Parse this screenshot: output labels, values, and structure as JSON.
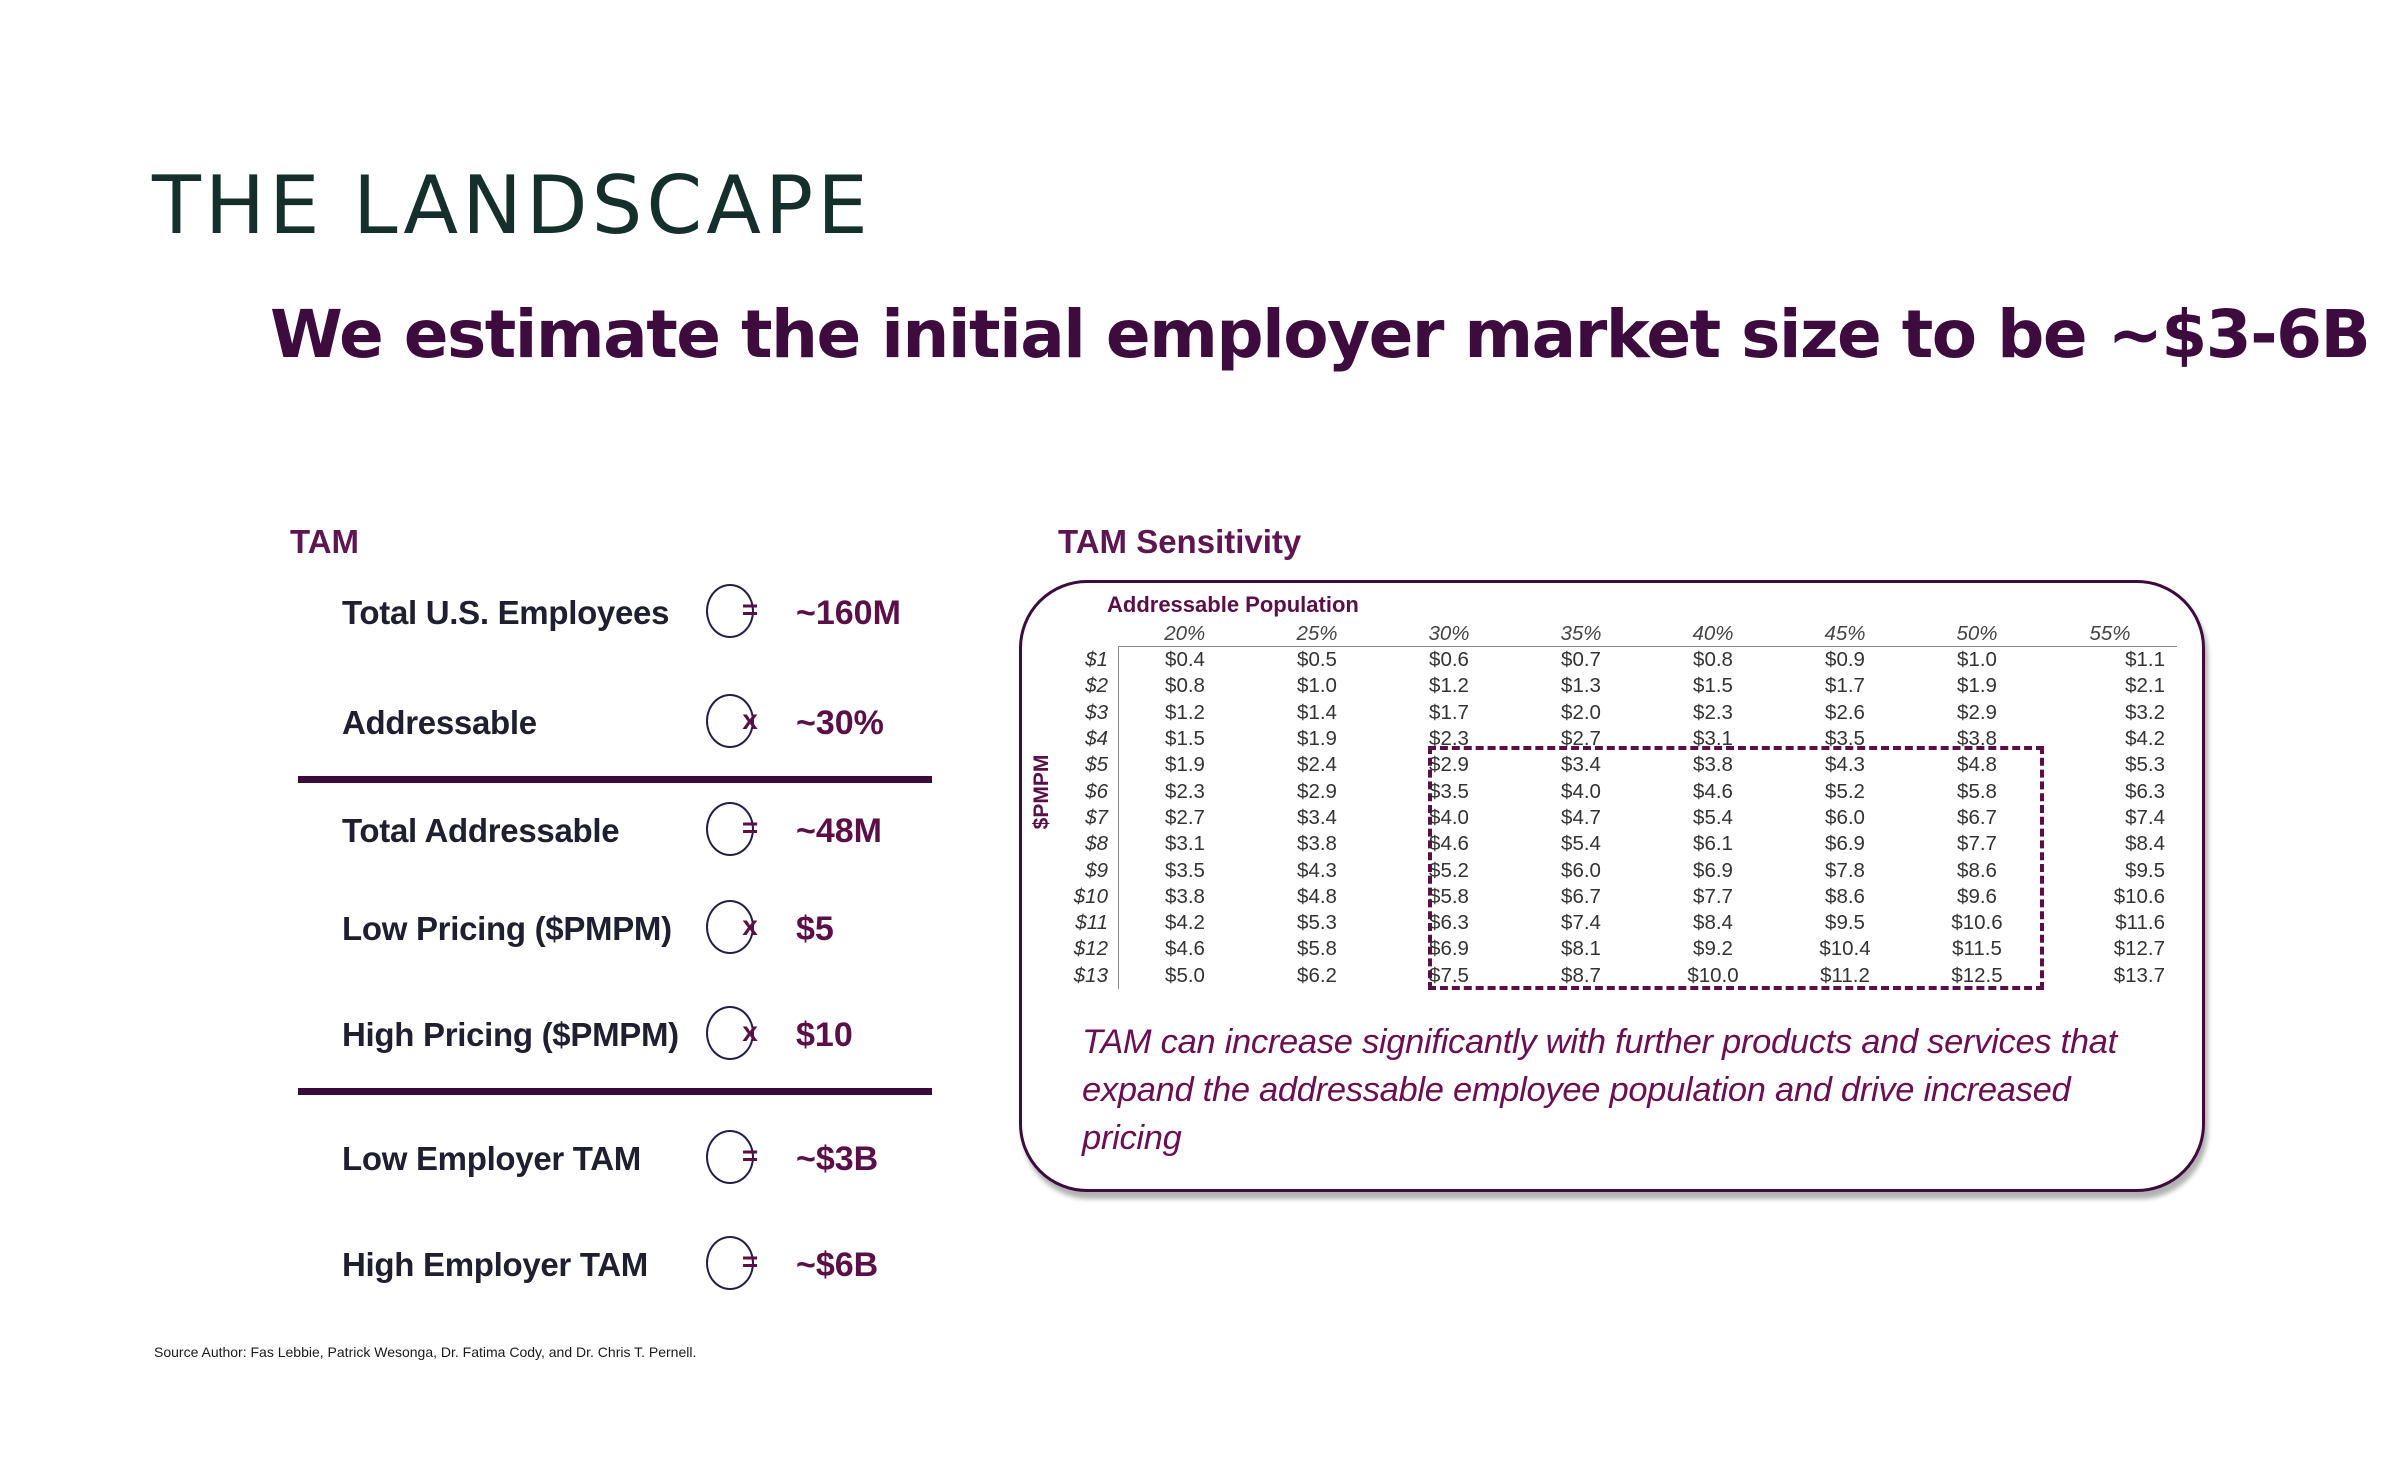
{
  "page_title": "THE LANDSCAPE",
  "headline": "We estimate the initial employer market size to be ~$3-6B",
  "tam": {
    "title": "TAM",
    "rows": [
      {
        "label": "Total U.S. Employees",
        "op": "=",
        "value": "~160M"
      },
      {
        "label": "Addressable",
        "op": "x",
        "value": "~30%"
      },
      {
        "label": "Total Addressable",
        "op": "=",
        "value": "~48M"
      },
      {
        "label": "Low Pricing ($PMPM)",
        "op": "x",
        "value": "$5"
      },
      {
        "label": "High Pricing ($PMPM)",
        "op": "x",
        "value": "$10"
      },
      {
        "label": "Low Employer TAM",
        "op": "=",
        "value": "~$3B"
      },
      {
        "label": "High Employer TAM",
        "op": "=",
        "value": "~$6B"
      }
    ]
  },
  "sensitivity": {
    "title": "TAM Sensitivity",
    "column_axis_label": "Addressable Population",
    "row_axis_label": "$PMPM",
    "columns": [
      "20%",
      "25%",
      "30%",
      "35%",
      "40%",
      "45%",
      "50%",
      "55%"
    ],
    "rows": [
      {
        "label": "$1",
        "values": [
          "$0.4",
          "$0.5",
          "$0.6",
          "$0.7",
          "$0.8",
          "$0.9",
          "$1.0",
          "$1.1"
        ]
      },
      {
        "label": "$2",
        "values": [
          "$0.8",
          "$1.0",
          "$1.2",
          "$1.3",
          "$1.5",
          "$1.7",
          "$1.9",
          "$2.1"
        ]
      },
      {
        "label": "$3",
        "values": [
          "$1.2",
          "$1.4",
          "$1.7",
          "$2.0",
          "$2.3",
          "$2.6",
          "$2.9",
          "$3.2"
        ]
      },
      {
        "label": "$4",
        "values": [
          "$1.5",
          "$1.9",
          "$2.3",
          "$2.7",
          "$3.1",
          "$3.5",
          "$3.8",
          "$4.2"
        ]
      },
      {
        "label": "$5",
        "values": [
          "$1.9",
          "$2.4",
          "$2.9",
          "$3.4",
          "$3.8",
          "$4.3",
          "$4.8",
          "$5.3"
        ]
      },
      {
        "label": "$6",
        "values": [
          "$2.3",
          "$2.9",
          "$3.5",
          "$4.0",
          "$4.6",
          "$5.2",
          "$5.8",
          "$6.3"
        ]
      },
      {
        "label": "$7",
        "values": [
          "$2.7",
          "$3.4",
          "$4.0",
          "$4.7",
          "$5.4",
          "$6.0",
          "$6.7",
          "$7.4"
        ]
      },
      {
        "label": "$8",
        "values": [
          "$3.1",
          "$3.8",
          "$4.6",
          "$5.4",
          "$6.1",
          "$6.9",
          "$7.7",
          "$8.4"
        ]
      },
      {
        "label": "$9",
        "values": [
          "$3.5",
          "$4.3",
          "$5.2",
          "$6.0",
          "$6.9",
          "$7.8",
          "$8.6",
          "$9.5"
        ]
      },
      {
        "label": "$10",
        "values": [
          "$3.8",
          "$4.8",
          "$5.8",
          "$6.7",
          "$7.7",
          "$8.6",
          "$9.6",
          "$10.6"
        ]
      },
      {
        "label": "$11",
        "values": [
          "$4.2",
          "$5.3",
          "$6.3",
          "$7.4",
          "$8.4",
          "$9.5",
          "$10.6",
          "$11.6"
        ]
      },
      {
        "label": "$12",
        "values": [
          "$4.6",
          "$5.8",
          "$6.9",
          "$8.1",
          "$9.2",
          "$10.4",
          "$11.5",
          "$12.7"
        ]
      },
      {
        "label": "$13",
        "values": [
          "$5.0",
          "$6.2",
          "$7.5",
          "$8.7",
          "$10.0",
          "$11.2",
          "$12.5",
          "$13.7"
        ]
      }
    ],
    "note": "TAM can increase significantly with further products and services that expand the addressable employee population and drive increased pricing"
  },
  "source": "Source Author: Fas Lebbie, Patrick Wesonga, Dr. Fatima Cody, and Dr. Chris T. Pernell.",
  "colors": {
    "title": "#15302a",
    "headline": "#3e0b3f",
    "accent": "#5a0f47"
  }
}
